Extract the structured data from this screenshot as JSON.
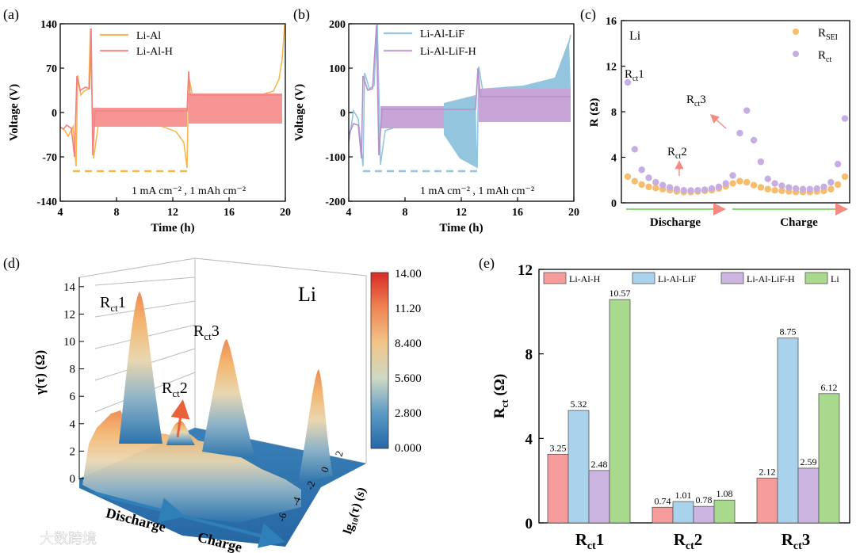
{
  "panel_labels": {
    "a": "(a)",
    "b": "(b)",
    "c": "(c)",
    "d": "(d)",
    "e": "(e)"
  },
  "watermark": "大数跨境",
  "chart_data": [
    {
      "id": "a",
      "type": "line",
      "xlabel": "Time (h)",
      "ylabel": "Voltage (V)",
      "xlim": [
        4,
        20
      ],
      "ylim": [
        -140,
        140
      ],
      "xticks": [
        "4",
        "8",
        "12",
        "16",
        "20"
      ],
      "yticks": [
        "-140",
        "-70",
        "0",
        "70",
        "140"
      ],
      "legend": [
        "Li-Al",
        "Li-Al-H"
      ],
      "annotation": "1 mA cm⁻² , 1 mAh cm⁻²",
      "series": [
        {
          "name": "Li-Al",
          "color": "#f5b851"
        },
        {
          "name": "Li-Al-H",
          "color": "#f79494"
        }
      ]
    },
    {
      "id": "b",
      "type": "line",
      "xlabel": "Time (h)",
      "ylabel": "Voltage (V)",
      "xlim": [
        4,
        20
      ],
      "ylim": [
        -200,
        200
      ],
      "xticks": [
        "4",
        "8",
        "12",
        "16",
        "20"
      ],
      "yticks": [
        "-200",
        "-100",
        "0",
        "100",
        "200"
      ],
      "legend": [
        "Li-Al-LiF",
        "Li-Al-LiF-H"
      ],
      "annotation": "1 mA cm⁻² , 1 mAh cm⁻²",
      "series": [
        {
          "name": "Li-Al-LiF",
          "color": "#93c6de"
        },
        {
          "name": "Li-Al-LiF-H",
          "color": "#c6a5d6"
        }
      ]
    },
    {
      "id": "c",
      "type": "scatter",
      "ylabel": "R (Ω)",
      "ylim": [
        0,
        16
      ],
      "yticks": [
        "0",
        "4",
        "8",
        "12",
        "16"
      ],
      "corner_label": "Li",
      "legend": [
        "R_SEI",
        "R_ct"
      ],
      "xlabels": [
        "Discharge",
        "Charge"
      ],
      "annotations": [
        "Rct1",
        "Rct2",
        "Rct3"
      ],
      "series": [
        {
          "name": "R_SEI",
          "color": "#f7bd6d",
          "values": [
            2.3,
            1.9,
            1.6,
            1.4,
            1.3,
            1.2,
            1.1,
            1.0,
            0.95,
            0.95,
            1.0,
            1.05,
            1.1,
            1.25,
            1.45,
            1.7,
            1.9,
            1.8,
            1.55,
            1.35,
            1.2,
            1.1,
            1.05,
            1.0,
            0.95,
            0.95,
            0.95,
            1.0,
            1.05,
            1.2,
            1.6,
            2.3
          ]
        },
        {
          "name": "R_ct",
          "color": "#c7aee2",
          "values": [
            10.57,
            4.7,
            2.9,
            2.2,
            1.8,
            1.55,
            1.35,
            1.2,
            1.1,
            1.08,
            1.1,
            1.15,
            1.25,
            1.4,
            1.7,
            2.4,
            6.12,
            8.1,
            5.5,
            3.6,
            2.1,
            1.7,
            1.5,
            1.35,
            1.25,
            1.2,
            1.2,
            1.25,
            1.4,
            1.8,
            3.4,
            7.4
          ]
        }
      ]
    },
    {
      "id": "d",
      "type": "surface",
      "zlabel": "γ(τ) (Ω)",
      "xaxis_label": "lg₁₀(τ) (s)",
      "zticks": [
        "0",
        "2",
        "4",
        "6",
        "8",
        "10",
        "12",
        "14"
      ],
      "taxis_ticks": [
        "2",
        "0",
        "-2",
        "-4",
        "-6"
      ],
      "colorbar": [
        "14.00",
        "11.20",
        "8.400",
        "5.600",
        "2.800",
        "0.000"
      ],
      "corner_label": "Li",
      "annotations": [
        "Rct1",
        "Rct2",
        "Rct3"
      ],
      "arrows": [
        "Discharge",
        "Charge"
      ]
    },
    {
      "id": "e",
      "type": "bar",
      "ylabel": "Rct (Ω)",
      "ylim": [
        0,
        12
      ],
      "yticks": [
        "0",
        "4",
        "8",
        "12"
      ],
      "categories": [
        "Rct1",
        "Rct2",
        "Rct3"
      ],
      "series": [
        {
          "name": "Li-Al-H",
          "color": "#f79c9c",
          "values": [
            3.25,
            0.74,
            2.12
          ]
        },
        {
          "name": "Li-Al-LiF",
          "color": "#a9d3ec",
          "values": [
            5.32,
            1.01,
            8.75
          ]
        },
        {
          "name": "Li-Al-LiF-H",
          "color": "#cdb5e2",
          "values": [
            2.48,
            0.78,
            2.59
          ]
        },
        {
          "name": "Li",
          "color": "#a9d98c",
          "values": [
            10.57,
            1.08,
            6.12
          ]
        }
      ]
    }
  ]
}
